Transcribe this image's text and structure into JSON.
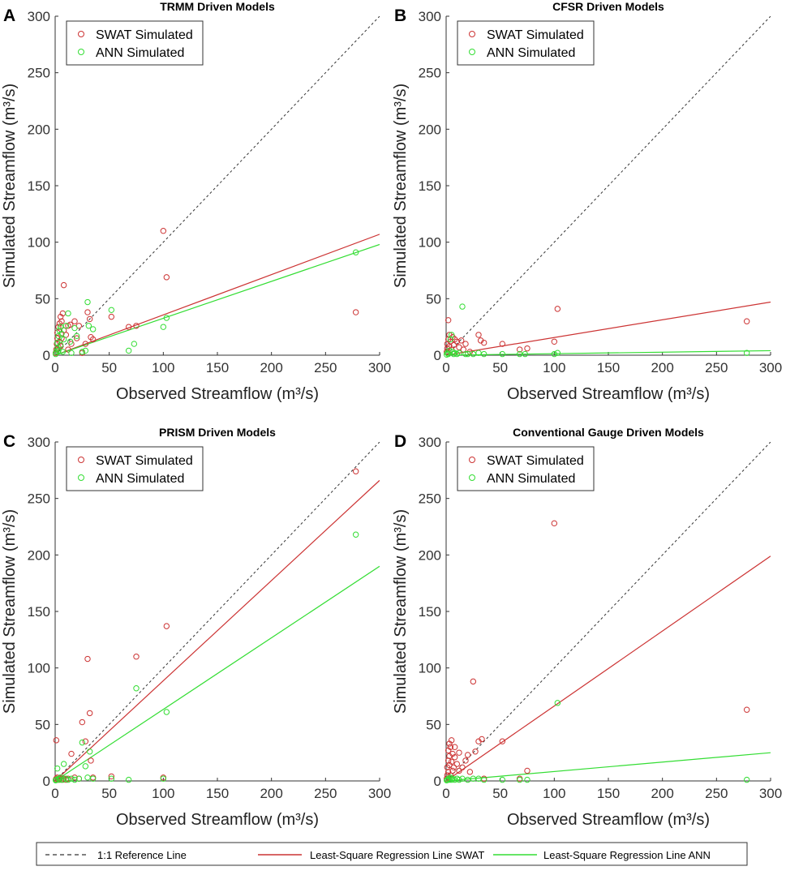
{
  "colors": {
    "swat": "#cc3333",
    "ann": "#33dd33",
    "reference": "#333333",
    "axis": "#333333"
  },
  "figure_legend": {
    "reference": "1:1 Reference Line",
    "swat_fit": "Least-Square Regression Line SWAT",
    "ann_fit": "Least-Square Regression Line ANN"
  },
  "chart_data": [
    {
      "type": "scatter",
      "letter": "A",
      "title": "TRMM Driven Models",
      "xlabel": "Observed Streamflow (m³/s)",
      "ylabel": "Simulated Streamflow (m³/s)",
      "xlim": [
        0,
        300
      ],
      "ylim": [
        0,
        300
      ],
      "xticks": [
        "0",
        "50",
        "100",
        "150",
        "200",
        "250",
        "300"
      ],
      "yticks": [
        "0",
        "50",
        "100",
        "150",
        "200",
        "250",
        "300"
      ],
      "legend": [
        "SWAT Simulated",
        "ANN Simulated"
      ],
      "fits": {
        "swat": [
          0,
          107
        ],
        "ann": [
          0,
          98
        ]
      },
      "series": [
        {
          "name": "SWAT Simulated",
          "points": [
            [
              0.5,
              2
            ],
            [
              1,
              5
            ],
            [
              1.5,
              10
            ],
            [
              2,
              15
            ],
            [
              2,
              20
            ],
            [
              3,
              7
            ],
            [
              3,
              25
            ],
            [
              4,
              12
            ],
            [
              4,
              28
            ],
            [
              5,
              8
            ],
            [
              5,
              34
            ],
            [
              6,
              15
            ],
            [
              6,
              30
            ],
            [
              7,
              37
            ],
            [
              8,
              62
            ],
            [
              8,
              22
            ],
            [
              10,
              18
            ],
            [
              12,
              26
            ],
            [
              12,
              5
            ],
            [
              14,
              27
            ],
            [
              15,
              10
            ],
            [
              18,
              30
            ],
            [
              20,
              15
            ],
            [
              22,
              26
            ],
            [
              25,
              2
            ],
            [
              28,
              10
            ],
            [
              30,
              38
            ],
            [
              32,
              32
            ],
            [
              33,
              16
            ],
            [
              35,
              14
            ],
            [
              52,
              34
            ],
            [
              68,
              25
            ],
            [
              75,
              26
            ],
            [
              100,
              110
            ],
            [
              103,
              69
            ],
            [
              278,
              38
            ]
          ]
        },
        {
          "name": "ANN Simulated",
          "points": [
            [
              0.5,
              1
            ],
            [
              1,
              3
            ],
            [
              2,
              6
            ],
            [
              2,
              11
            ],
            [
              3,
              4
            ],
            [
              3,
              17
            ],
            [
              4,
              22
            ],
            [
              5,
              9
            ],
            [
              5,
              25
            ],
            [
              6,
              19
            ],
            [
              7,
              3
            ],
            [
              8,
              14
            ],
            [
              10,
              26
            ],
            [
              12,
              37
            ],
            [
              14,
              12
            ],
            [
              15,
              2
            ],
            [
              18,
              24
            ],
            [
              20,
              17
            ],
            [
              25,
              3
            ],
            [
              28,
              4
            ],
            [
              30,
              47
            ],
            [
              31,
              26
            ],
            [
              35,
              23
            ],
            [
              52,
              40
            ],
            [
              68,
              4
            ],
            [
              73,
              10
            ],
            [
              100,
              25
            ],
            [
              103,
              33
            ],
            [
              278,
              91
            ]
          ]
        }
      ]
    },
    {
      "type": "scatter",
      "letter": "B",
      "title": "CFSR Driven Models",
      "xlabel": "Observed Streamflow (m³/s)",
      "ylabel": "Simulated Streamflow (m³/s)",
      "xlim": [
        0,
        300
      ],
      "ylim": [
        0,
        300
      ],
      "xticks": [
        "0",
        "50",
        "100",
        "150",
        "200",
        "250",
        "300"
      ],
      "yticks": [
        "0",
        "50",
        "100",
        "150",
        "200",
        "250",
        "300"
      ],
      "legend": [
        "SWAT Simulated",
        "ANN Simulated"
      ],
      "fits": {
        "swat": [
          0,
          47
        ],
        "ann": [
          0,
          4
        ]
      },
      "series": [
        {
          "name": "SWAT Simulated",
          "points": [
            [
              0.5,
              3
            ],
            [
              1,
              6
            ],
            [
              1,
              10
            ],
            [
              2,
              14
            ],
            [
              2,
              31
            ],
            [
              3,
              8
            ],
            [
              3,
              18
            ],
            [
              4,
              12
            ],
            [
              5,
              5
            ],
            [
              6,
              16
            ],
            [
              7,
              9
            ],
            [
              8,
              14
            ],
            [
              10,
              12
            ],
            [
              12,
              7
            ],
            [
              14,
              13
            ],
            [
              16,
              5
            ],
            [
              18,
              10
            ],
            [
              22,
              3
            ],
            [
              30,
              18
            ],
            [
              32,
              13
            ],
            [
              35,
              11
            ],
            [
              52,
              10
            ],
            [
              68,
              5
            ],
            [
              75,
              6
            ],
            [
              100,
              12
            ],
            [
              103,
              41
            ],
            [
              278,
              30
            ]
          ]
        },
        {
          "name": "ANN Simulated",
          "points": [
            [
              0.5,
              0.5
            ],
            [
              1,
              2
            ],
            [
              2,
              1
            ],
            [
              3,
              4
            ],
            [
              4,
              14
            ],
            [
              5,
              18
            ],
            [
              6,
              3
            ],
            [
              7,
              1
            ],
            [
              8,
              2
            ],
            [
              10,
              1
            ],
            [
              12,
              2
            ],
            [
              15,
              43
            ],
            [
              18,
              1
            ],
            [
              20,
              1
            ],
            [
              25,
              1
            ],
            [
              30,
              2
            ],
            [
              35,
              1
            ],
            [
              52,
              1
            ],
            [
              68,
              1
            ],
            [
              73,
              1
            ],
            [
              100,
              1
            ],
            [
              103,
              2
            ],
            [
              278,
              2
            ]
          ]
        }
      ]
    },
    {
      "type": "scatter",
      "letter": "C",
      "title": "PRISM Driven Models",
      "xlabel": "Observed Streamflow (m³/s)",
      "ylabel": "Simulated Streamflow (m³/s)",
      "xlim": [
        0,
        300
      ],
      "ylim": [
        0,
        300
      ],
      "xticks": [
        "0",
        "50",
        "100",
        "150",
        "200",
        "250",
        "300"
      ],
      "yticks": [
        "0",
        "50",
        "100",
        "150",
        "200",
        "250",
        "300"
      ],
      "legend": [
        "SWAT Simulated",
        "ANN Simulated"
      ],
      "fits": {
        "swat": [
          0,
          266
        ],
        "ann": [
          0,
          190
        ]
      },
      "series": [
        {
          "name": "SWAT Simulated",
          "points": [
            [
              0.5,
              1
            ],
            [
              1,
              2
            ],
            [
              1,
              36
            ],
            [
              2,
              3
            ],
            [
              3,
              1
            ],
            [
              4,
              2
            ],
            [
              5,
              3
            ],
            [
              6,
              1
            ],
            [
              8,
              2
            ],
            [
              10,
              1
            ],
            [
              12,
              2
            ],
            [
              15,
              24
            ],
            [
              18,
              3
            ],
            [
              22,
              2
            ],
            [
              25,
              52
            ],
            [
              28,
              35
            ],
            [
              30,
              108
            ],
            [
              32,
              60
            ],
            [
              33,
              18
            ],
            [
              35,
              3
            ],
            [
              52,
              4
            ],
            [
              75,
              110
            ],
            [
              100,
              3
            ],
            [
              103,
              137
            ],
            [
              278,
              274
            ]
          ]
        },
        {
          "name": "ANN Simulated",
          "points": [
            [
              0.5,
              0.5
            ],
            [
              1,
              1
            ],
            [
              2,
              11
            ],
            [
              3,
              2
            ],
            [
              4,
              1
            ],
            [
              5,
              3
            ],
            [
              7,
              1
            ],
            [
              8,
              15
            ],
            [
              10,
              2
            ],
            [
              12,
              1
            ],
            [
              15,
              2
            ],
            [
              18,
              1
            ],
            [
              22,
              2
            ],
            [
              25,
              34
            ],
            [
              28,
              13
            ],
            [
              30,
              3
            ],
            [
              32,
              26
            ],
            [
              35,
              2
            ],
            [
              52,
              2
            ],
            [
              68,
              1
            ],
            [
              75,
              82
            ],
            [
              100,
              2
            ],
            [
              103,
              61
            ],
            [
              278,
              218
            ]
          ]
        }
      ]
    },
    {
      "type": "scatter",
      "letter": "D",
      "title": "Conventional Gauge Driven Models",
      "xlabel": "Observed Streamflow (m³/s)",
      "ylabel": "Simulated Streamflow (m³/s)",
      "xlim": [
        0,
        300
      ],
      "ylim": [
        0,
        300
      ],
      "xticks": [
        "0",
        "50",
        "100",
        "150",
        "200",
        "250",
        "300"
      ],
      "yticks": [
        "0",
        "50",
        "100",
        "150",
        "200",
        "250",
        "300"
      ],
      "legend": [
        "SWAT Simulated",
        "ANN Simulated"
      ],
      "fits": {
        "swat": [
          0,
          199
        ],
        "ann": [
          0,
          25
        ]
      },
      "series": [
        {
          "name": "SWAT Simulated",
          "points": [
            [
              0.5,
              2
            ],
            [
              1,
              5
            ],
            [
              1,
              12
            ],
            [
              2,
              18
            ],
            [
              2,
              8
            ],
            [
              2,
              27
            ],
            [
              3,
              14
            ],
            [
              3,
              33
            ],
            [
              3,
              22
            ],
            [
              4,
              5
            ],
            [
              4,
              30
            ],
            [
              5,
              17
            ],
            [
              5,
              36
            ],
            [
              6,
              9
            ],
            [
              6,
              24
            ],
            [
              7,
              12
            ],
            [
              8,
              21
            ],
            [
              8,
              30
            ],
            [
              10,
              15
            ],
            [
              12,
              9
            ],
            [
              12,
              25
            ],
            [
              15,
              12
            ],
            [
              18,
              18
            ],
            [
              20,
              23
            ],
            [
              22,
              8
            ],
            [
              25,
              88
            ],
            [
              27,
              26
            ],
            [
              30,
              35
            ],
            [
              33,
              37
            ],
            [
              35,
              2
            ],
            [
              52,
              35
            ],
            [
              68,
              2
            ],
            [
              75,
              9
            ],
            [
              100,
              228
            ],
            [
              278,
              63
            ]
          ]
        },
        {
          "name": "ANN Simulated",
          "points": [
            [
              0.5,
              0.5
            ],
            [
              1,
              1
            ],
            [
              2,
              2
            ],
            [
              3,
              1
            ],
            [
              4,
              3
            ],
            [
              5,
              1
            ],
            [
              6,
              2
            ],
            [
              8,
              1
            ],
            [
              10,
              2
            ],
            [
              12,
              1
            ],
            [
              15,
              2
            ],
            [
              20,
              1
            ],
            [
              25,
              2
            ],
            [
              30,
              2
            ],
            [
              35,
              1
            ],
            [
              52,
              1
            ],
            [
              68,
              1
            ],
            [
              75,
              1
            ],
            [
              103,
              69
            ],
            [
              278,
              1
            ]
          ]
        }
      ]
    }
  ]
}
